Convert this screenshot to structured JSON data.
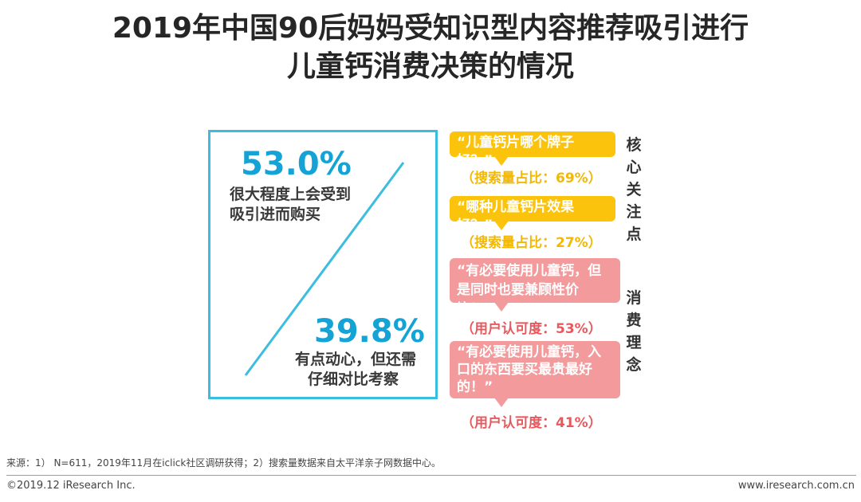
{
  "title": {
    "line1": "2019年中国90后妈妈受知识型内容推荐吸引进行",
    "line2": "儿童钙消费决策的情况"
  },
  "stats": [
    {
      "percent": "53.0%",
      "desc_line1": "很大程度上会受到",
      "desc_line2": "吸引进而购买"
    },
    {
      "percent": "39.8%",
      "desc_line1": "有点动心，但还需",
      "desc_line2": "仔细对比考察"
    }
  ],
  "core_focus": {
    "label": "核心关注点",
    "label_chars": [
      "核",
      "心",
      "关",
      "注",
      "点"
    ],
    "items": [
      {
        "quote": "“儿童钙片哪个牌子好？”",
        "share": "（搜索量占比：69%）"
      },
      {
        "quote": "“哪种儿童钙片效果好？”",
        "share": "（搜索量占比：27%）"
      }
    ]
  },
  "consumption_concept": {
    "label": "消费理念",
    "label_chars": [
      "消",
      "费",
      "理",
      "念"
    ],
    "items": [
      {
        "quote_line1": "“有必要使用儿童钙，但",
        "quote_line2": "是同时也要兼顾性价比！”",
        "quote_line3": "",
        "share": "（用户认可度：53%）"
      },
      {
        "quote_line1": "“有必要使用儿童钙，入",
        "quote_line2": "口的东西要买最贵最好",
        "quote_line3": "的！”",
        "share": "（用户认可度：41%）"
      }
    ]
  },
  "colors": {
    "accent_blue": "#15a3d6",
    "box_border": "#3bbde0",
    "yellow": "#fcc30d",
    "pink": "#f29a9c",
    "pink_text": "#e8595e"
  },
  "footer": {
    "source": "来源：1） N=611，2019年11月在iclick社区调研获得；2）搜索量数据来自太平洋亲子网数据中心。",
    "copyright": "©2019.12 iResearch Inc.",
    "website": "www.iresearch.com.cn"
  }
}
